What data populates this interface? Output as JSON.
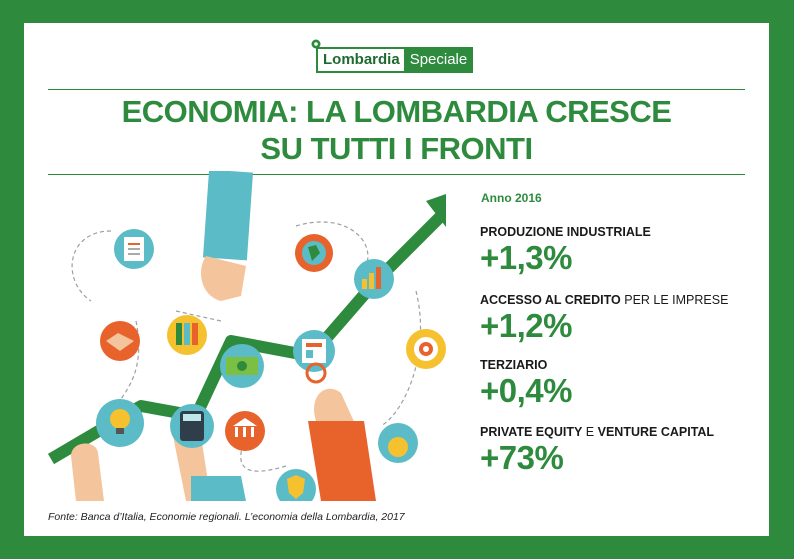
{
  "logo": {
    "part1": "Lombardia",
    "part2": "Speciale"
  },
  "title": {
    "line1": "ECONOMIA: LA LOMBARDIA CRESCE",
    "line2": "SU TUTTI I FRONTI"
  },
  "year": "Anno 2016",
  "stats": [
    {
      "label_bold": "PRODUZIONE INDUSTRIALE",
      "label_rest": "",
      "value": "+1,3%"
    },
    {
      "label_bold": "ACCESSO AL CREDITO",
      "label_rest": " PER LE IMPRESE",
      "value": "+1,2%"
    },
    {
      "label_bold": "TERZIARIO",
      "label_rest": "",
      "value": "+0,4%"
    },
    {
      "label_bold": "PRIVATE EQUITY",
      "label_mid": " E ",
      "label_bold2": "VENTURE CAPITAL",
      "value": "+73%"
    }
  ],
  "source": "Fonte: Banca d’Italia, Economie regionali. L’economia della Lombardia, 2017",
  "illustration": {
    "icons": [
      "document-icon",
      "globe-icon",
      "growth-chart-icon",
      "handshake-icon",
      "binders-icon",
      "banknote-icon",
      "newspaper-icon",
      "target-icon",
      "lightbulb-icon",
      "calculator-icon",
      "bank-icon",
      "money-bag-icon",
      "shield-icon"
    ],
    "colors": {
      "brand_green": "#2e8b3e",
      "teal": "#5bbcc7",
      "orange": "#e8622c",
      "yellow": "#f5c12e"
    }
  }
}
